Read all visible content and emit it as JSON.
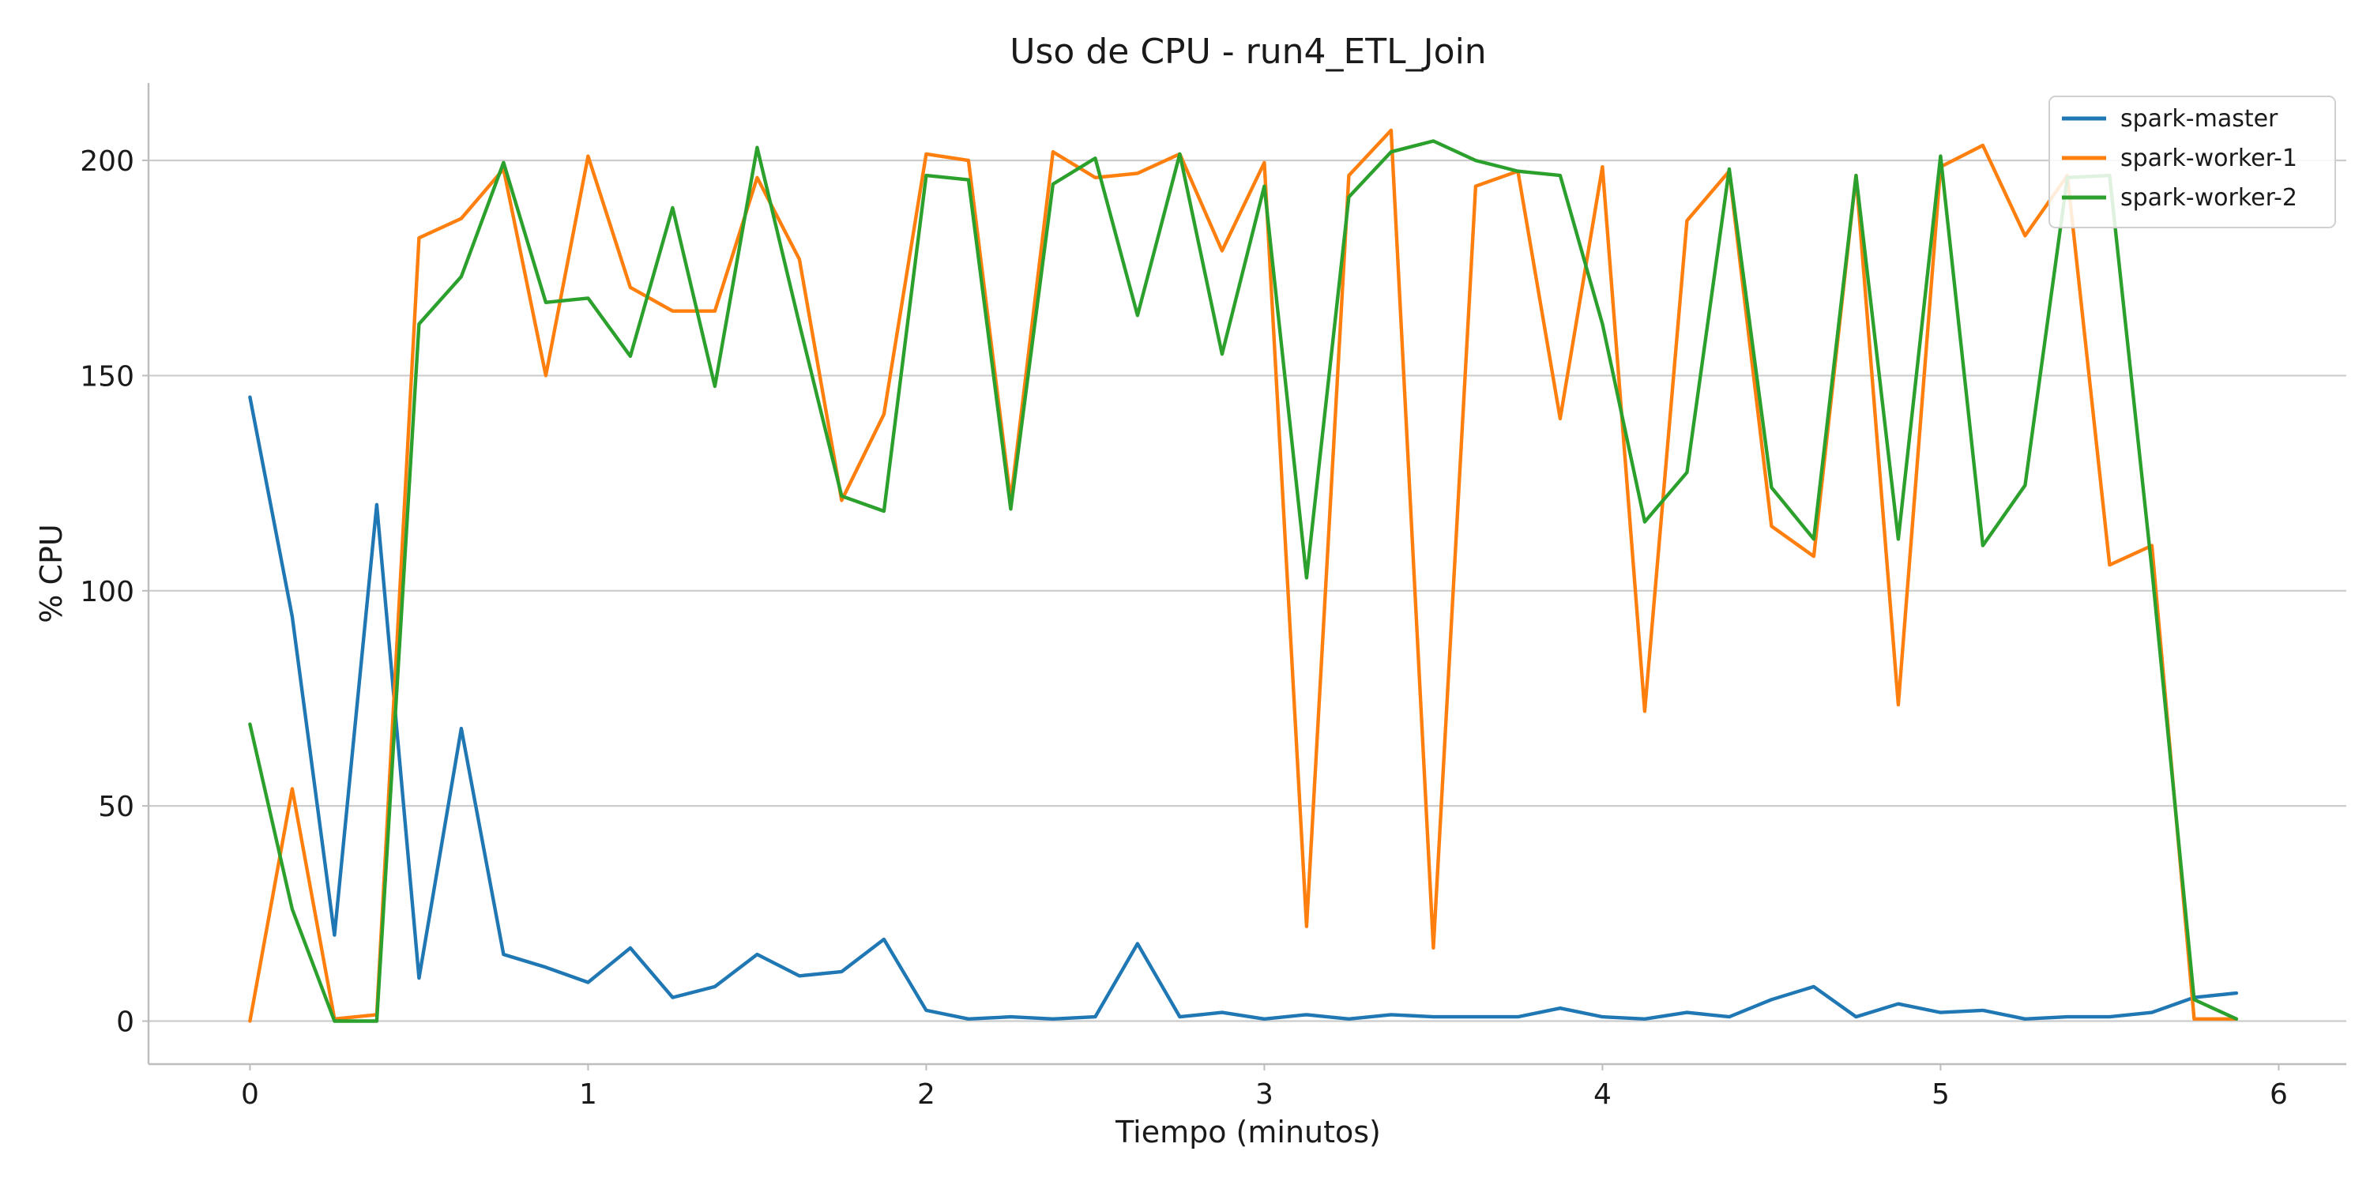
{
  "chart_data": {
    "type": "line",
    "title": "Uso de CPU - run4_ETL_Join",
    "xlabel": "Tiempo (minutos)",
    "ylabel": "% CPU",
    "xlim": [
      -0.3,
      6.2
    ],
    "ylim": [
      -10,
      218
    ],
    "xticks": [
      0,
      1,
      2,
      3,
      4,
      5,
      6
    ],
    "yticks": [
      0,
      50,
      100,
      150,
      200
    ],
    "grid": "y-only",
    "legend_position": "top-right",
    "x": [
      0,
      0.125,
      0.25,
      0.375,
      0.5,
      0.625,
      0.75,
      0.875,
      1.0,
      1.125,
      1.25,
      1.375,
      1.5,
      1.625,
      1.75,
      1.875,
      2.0,
      2.125,
      2.25,
      2.375,
      2.5,
      2.625,
      2.75,
      2.875,
      3.0,
      3.125,
      3.25,
      3.375,
      3.5,
      3.625,
      3.75,
      3.875,
      4.0,
      4.125,
      4.25,
      4.375,
      4.5,
      4.625,
      4.75,
      4.875,
      5.0,
      5.125,
      5.25,
      5.375,
      5.5,
      5.625,
      5.75,
      5.875
    ],
    "series": [
      {
        "name": "spark-master",
        "color": "#1f77b4",
        "values": [
          145,
          94,
          20,
          120,
          10,
          68,
          15.5,
          12.5,
          9,
          17,
          5.5,
          8,
          15.5,
          10.5,
          11.5,
          19,
          2.5,
          0.5,
          1,
          0.5,
          1,
          18,
          1,
          2,
          0.5,
          1.5,
          0.5,
          1.5,
          1,
          1,
          1,
          3,
          1,
          0.5,
          2,
          1,
          5,
          8,
          1,
          4,
          2,
          2.5,
          0.5,
          1,
          1,
          2,
          5.5,
          6.5
        ]
      },
      {
        "name": "spark-worker-1",
        "color": "#ff7f0e",
        "values": [
          0,
          54,
          0.5,
          1.5,
          182,
          186.5,
          198,
          150,
          201,
          170.5,
          165,
          165,
          196,
          177,
          121,
          141,
          201.5,
          200,
          121,
          202,
          196,
          197,
          201.5,
          179,
          199.5,
          22,
          196.5,
          207,
          17,
          194,
          197.5,
          140,
          198.5,
          72,
          186,
          197.5,
          115,
          108,
          196.5,
          73.5,
          198.5,
          203.5,
          182.5,
          196.5,
          106,
          110.5,
          0.5,
          0.5
        ]
      },
      {
        "name": "spark-worker-2",
        "color": "#2ca02c",
        "values": [
          69,
          26,
          0,
          0,
          162,
          173,
          199.5,
          167,
          168,
          154.5,
          189,
          147.5,
          203,
          162,
          122,
          118.5,
          196.5,
          195.5,
          119,
          194.5,
          200.5,
          164,
          201.5,
          155,
          194,
          103,
          191.5,
          202,
          204.5,
          200,
          197.5,
          196.5,
          162,
          116,
          127.5,
          198,
          124,
          112,
          196.5,
          112,
          201,
          110.5,
          124.5,
          196,
          196.5,
          105,
          5,
          0.5
        ]
      }
    ]
  }
}
